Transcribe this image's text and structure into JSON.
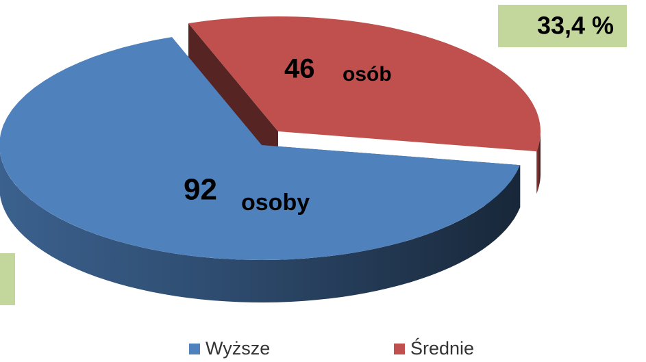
{
  "chart_data": {
    "type": "pie3d",
    "categories": [
      "Wyższe",
      "Średnie"
    ],
    "values": [
      92,
      46
    ],
    "label_suffixes": [
      "osoby",
      "osób"
    ],
    "colors": [
      "#4f81bd",
      "#c0504d"
    ],
    "annotation": "33,4 %",
    "legend": "bottom"
  }
}
